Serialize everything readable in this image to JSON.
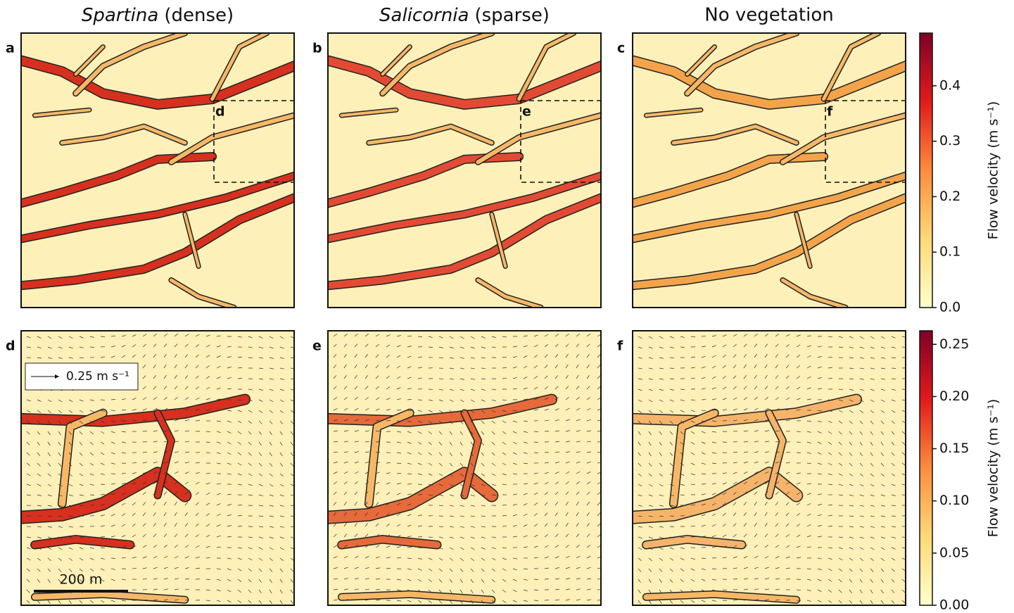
{
  "chart_data": [
    {
      "type": "heatmap",
      "column_titles": [
        {
          "italic": "Spartina",
          "text": "(dense)"
        },
        {
          "italic": "Salicornia",
          "text": "(sparse)"
        },
        {
          "text": "No vegetation"
        }
      ],
      "panels": [
        "a",
        "b",
        "c"
      ],
      "inset_labels": [
        "d",
        "e",
        "f"
      ],
      "colorbar": {
        "label": "Flow velocity (m s⁻¹)",
        "lim": [
          0,
          0.495
        ],
        "ticks": [
          {
            "value": 0,
            "label": "0.0"
          },
          0.1,
          0.2,
          0.3,
          0.4
        ]
      }
    },
    {
      "type": "heatmap",
      "panels": [
        "d",
        "e",
        "f"
      ],
      "arrow_key": "0.25 m s⁻¹",
      "scale_bar": "200 m",
      "colorbar": {
        "label": "Flow velocity (m s⁻¹)",
        "lim": [
          0,
          0.263
        ],
        "ticks": [
          {
            "value": 0,
            "label": "0.00"
          },
          {
            "value": 0.05,
            "label": "0.05"
          },
          {
            "value": 0.1,
            "label": "0.10"
          },
          {
            "value": 0.15,
            "label": "0.15"
          },
          {
            "value": 0.2,
            "label": "0.20"
          },
          0.25
        ]
      }
    }
  ]
}
